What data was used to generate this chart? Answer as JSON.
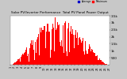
{
  "title": "Solar PV/Inverter Performance  Total PV Panel Power Output",
  "bg_color": "#c8c8c8",
  "plot_bg_color": "#ffffff",
  "bar_color": "#ff0000",
  "grid_color": "#dcdcdc",
  "ylim": [
    0,
    3500
  ],
  "ytick_vals": [
    500,
    1000,
    1500,
    2000,
    2500,
    3000,
    3500
  ],
  "ytick_labels": [
    "500",
    "1k",
    "1.5k",
    "2k",
    "2.5k",
    "3k",
    "3.5k"
  ],
  "legend_color1": "#0000cc",
  "legend_color2": "#ff0000",
  "legend_label1": "Average",
  "legend_label2": "Maximum",
  "n_bars": 365,
  "peak_day": 172
}
